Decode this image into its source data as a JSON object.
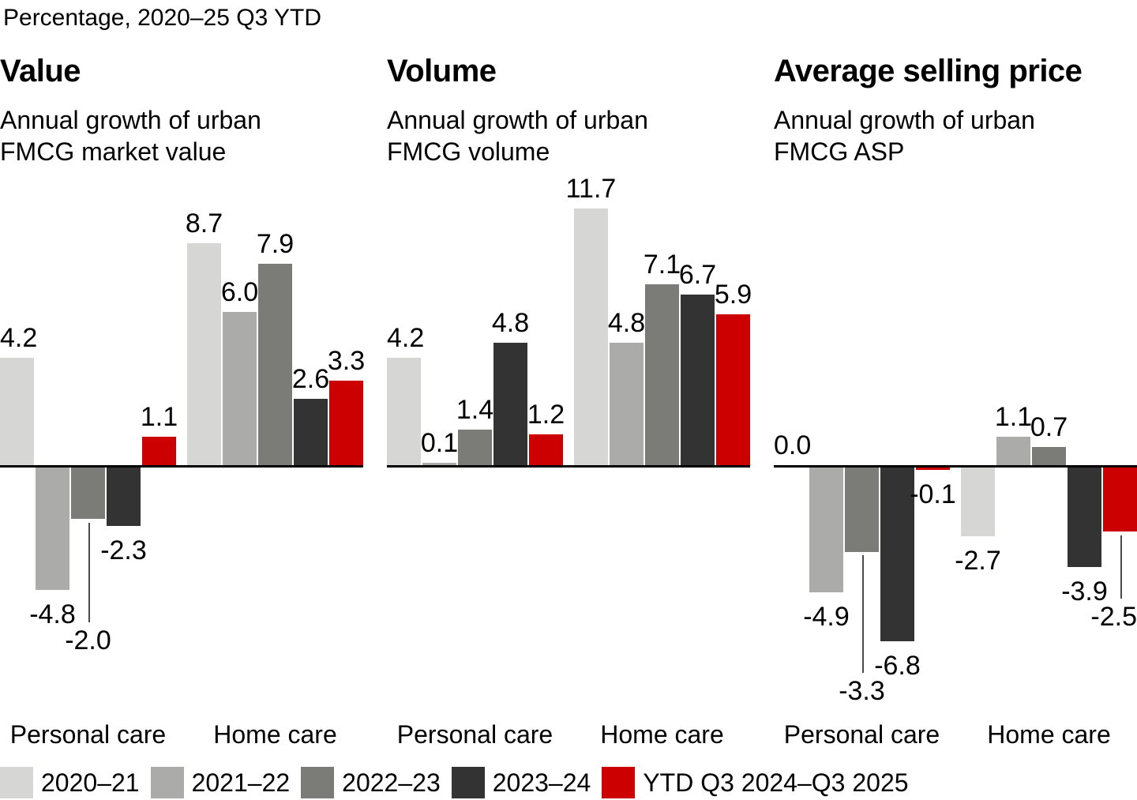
{
  "kicker": "Percentage, 2020–25 Q3 YTD",
  "legend": {
    "items": [
      {
        "label": "2020–21",
        "color": "#d6d6d4"
      },
      {
        "label": "2021–22",
        "color": "#ababa9"
      },
      {
        "label": "2022–23",
        "color": "#7b7b78"
      },
      {
        "label": "2023–24",
        "color": "#333333"
      },
      {
        "label": "YTD Q3 2024–Q3 2025",
        "color": "#cc0000"
      }
    ]
  },
  "chart_data": [
    {
      "type": "bar",
      "title": "Value",
      "subtitle": "Annual growth of urban FMCG market value",
      "subtitle_lines": [
        "Annual growth of urban",
        "FMCG market value"
      ],
      "unit": "%",
      "categories": [
        "Personal care",
        "Home care"
      ],
      "series": [
        {
          "name": "2020–21",
          "values": [
            4.2,
            8.7
          ]
        },
        {
          "name": "2021–22",
          "values": [
            -4.8,
            6.0
          ]
        },
        {
          "name": "2022–23",
          "values": [
            -2.0,
            7.9
          ]
        },
        {
          "name": "2023–24",
          "values": [
            -2.3,
            2.6
          ]
        },
        {
          "name": "YTD Q3 2024–Q3 2025",
          "values": [
            1.1,
            3.3
          ]
        }
      ],
      "ylim": [
        -6,
        10
      ],
      "grid": false,
      "value_labels": true,
      "legend_position": "bottom"
    },
    {
      "type": "bar",
      "title": "Volume",
      "subtitle": "Annual growth of urban FMCG volume",
      "subtitle_lines": [
        "Annual growth of urban",
        "FMCG volume"
      ],
      "unit": "%",
      "categories": [
        "Personal care",
        "Home care"
      ],
      "series": [
        {
          "name": "2020–21",
          "values": [
            4.2,
            11.7
          ]
        },
        {
          "name": "2021–22",
          "values": [
            0.1,
            4.8
          ]
        },
        {
          "name": "2022–23",
          "values": [
            1.4,
            7.1
          ]
        },
        {
          "name": "2023–24",
          "values": [
            4.8,
            6.7
          ]
        },
        {
          "name": "YTD Q3 2024–Q3 2025",
          "values": [
            1.2,
            5.9
          ]
        }
      ],
      "ylim": [
        0,
        12
      ],
      "grid": false,
      "value_labels": true,
      "legend_position": "bottom"
    },
    {
      "type": "bar",
      "title": "Average selling price",
      "subtitle": "Annual growth of urban FMCG ASP",
      "subtitle_lines": [
        "Annual growth of urban",
        "FMCG ASP"
      ],
      "unit": "%",
      "categories": [
        "Personal care",
        "Home care"
      ],
      "series": [
        {
          "name": "2020–21",
          "values": [
            0.0,
            -2.7
          ]
        },
        {
          "name": "2021–22",
          "values": [
            -4.9,
            1.1
          ]
        },
        {
          "name": "2022–23",
          "values": [
            -3.3,
            0.7
          ]
        },
        {
          "name": "2023–24",
          "values": [
            -6.8,
            -3.9
          ]
        },
        {
          "name": "YTD Q3 2024–Q3 2025",
          "values": [
            -0.1,
            -2.5
          ]
        }
      ],
      "ylim": [
        -8,
        2
      ],
      "grid": false,
      "value_labels": true,
      "legend_position": "bottom"
    }
  ]
}
